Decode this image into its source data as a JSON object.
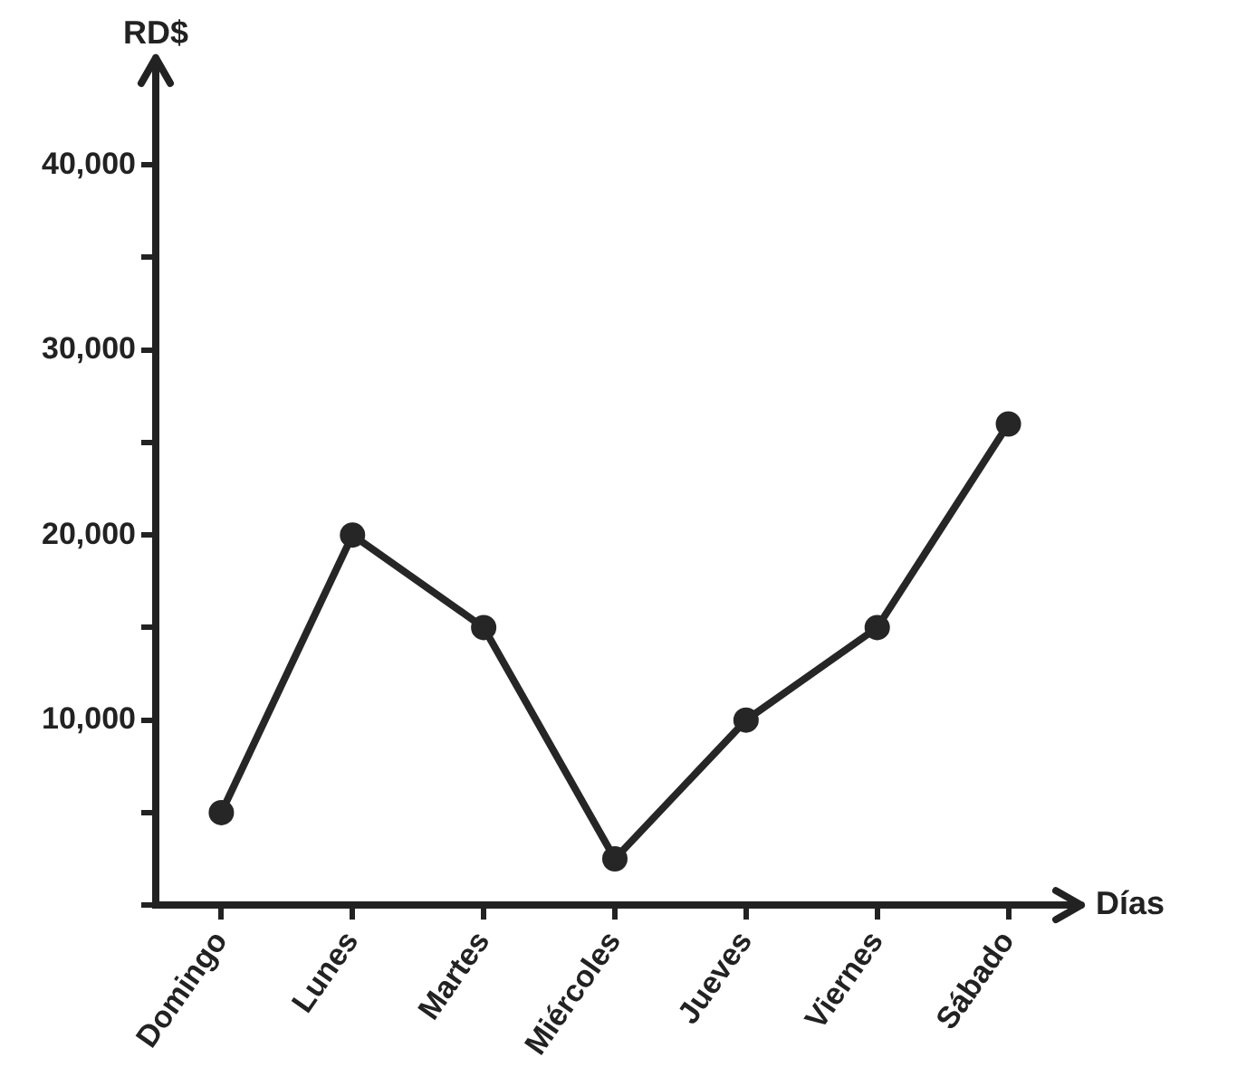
{
  "chart_data": {
    "type": "line",
    "xlabel": "Días",
    "ylabel": "RD$",
    "categories": [
      "Domingo",
      "Lunes",
      "Martes",
      "Miércoles",
      "Jueves",
      "Viernes",
      "Sábado"
    ],
    "series": [
      {
        "color": "#262626",
        "values": [
          5000,
          20000,
          15000,
          2500,
          10000,
          15000,
          26000
        ]
      }
    ],
    "ylim": [
      0,
      45000
    ],
    "yticks": [
      {
        "value": 0,
        "label": null
      },
      {
        "value": 5000,
        "label": null
      },
      {
        "value": 10000,
        "label": "10,000"
      },
      {
        "value": 15000,
        "label": null
      },
      {
        "value": 20000,
        "label": "20,000"
      },
      {
        "value": 25000,
        "label": null
      },
      {
        "value": 30000,
        "label": "30,000"
      },
      {
        "value": 35000,
        "label": null
      },
      {
        "value": 40000,
        "label": "40,000"
      }
    ],
    "grid": false,
    "legend": false,
    "marker": "circle",
    "line_style": "solid"
  }
}
